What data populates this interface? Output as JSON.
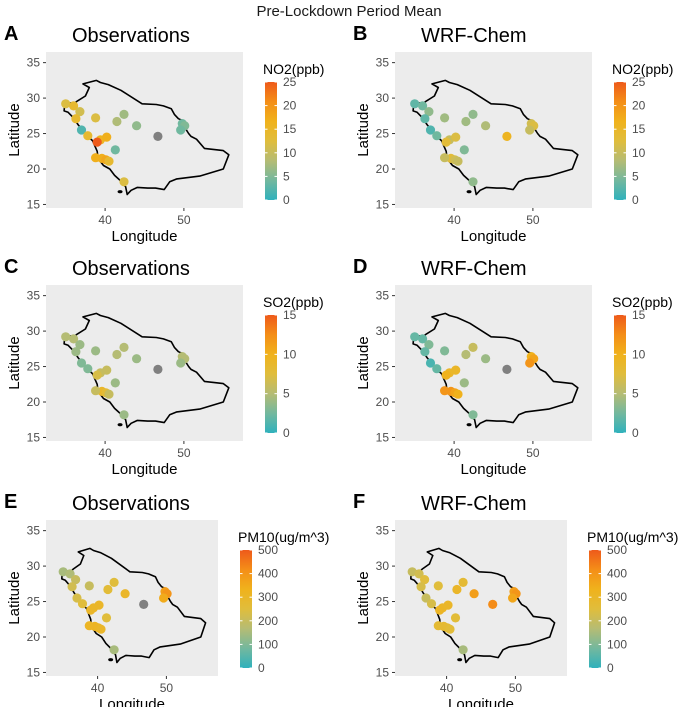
{
  "figure_title": "Pre-Lockdown Period Mean",
  "axis_labels": {
    "x": "Longitude",
    "y": "Latitude"
  },
  "x_ticks": [
    "40",
    "50"
  ],
  "y_ticks": [
    "15",
    "20",
    "25",
    "30",
    "35"
  ],
  "palette": [
    "#2fb1bc",
    "#73b89e",
    "#b5bc74",
    "#e0bd3c",
    "#f0b21c",
    "#f48e18",
    "#ee5a1a"
  ],
  "missing_color": "#808080",
  "chart_data": [
    {
      "panel": "A",
      "type": "scatter",
      "title": "Observations",
      "legend_title": "NO2(ppb)",
      "legend_ticks": [
        "0",
        "5",
        "10",
        "15",
        "20",
        "25"
      ],
      "range": [
        0,
        25
      ],
      "xlim": [
        32.5,
        57.5
      ],
      "ylim": [
        14.5,
        36.5
      ],
      "points": [
        [
          35.0,
          29.2,
          12
        ],
        [
          36.0,
          28.9,
          14
        ],
        [
          36.8,
          28.1,
          11
        ],
        [
          36.3,
          27.1,
          14
        ],
        [
          37.0,
          25.5,
          2
        ],
        [
          37.8,
          24.7,
          14
        ],
        [
          38.8,
          27.2,
          12
        ],
        [
          39.4,
          24.1,
          16
        ],
        [
          39.0,
          23.8,
          25
        ],
        [
          40.2,
          24.5,
          17
        ],
        [
          39.6,
          21.5,
          17
        ],
        [
          40.1,
          21.3,
          18
        ],
        [
          40.5,
          21.1,
          14
        ],
        [
          38.8,
          21.6,
          17
        ],
        [
          41.5,
          26.7,
          8
        ],
        [
          42.4,
          27.7,
          7
        ],
        [
          41.3,
          22.7,
          4
        ],
        [
          42.4,
          18.2,
          12
        ],
        [
          44.0,
          26.1,
          6
        ],
        [
          46.7,
          24.6,
          null
        ],
        [
          49.8,
          26.4,
          4
        ],
        [
          50.1,
          26.1,
          5
        ],
        [
          49.6,
          25.5,
          4
        ]
      ]
    },
    {
      "panel": "B",
      "type": "scatter",
      "title": "WRF-Chem",
      "legend_title": "NO2(ppb)",
      "legend_ticks": [
        "0",
        "5",
        "10",
        "15",
        "20",
        "25"
      ],
      "range": [
        0,
        25
      ],
      "xlim": [
        32.5,
        57.5
      ],
      "ylim": [
        14.5,
        36.5
      ],
      "points": [
        [
          35.0,
          29.2,
          3
        ],
        [
          36.0,
          28.9,
          4
        ],
        [
          36.8,
          28.1,
          6
        ],
        [
          36.3,
          27.1,
          3
        ],
        [
          37.0,
          25.5,
          2
        ],
        [
          37.8,
          24.7,
          4
        ],
        [
          38.8,
          27.2,
          7
        ],
        [
          39.4,
          24.1,
          10
        ],
        [
          39.0,
          23.8,
          13
        ],
        [
          40.2,
          24.5,
          12
        ],
        [
          39.6,
          21.5,
          13
        ],
        [
          40.1,
          21.3,
          11
        ],
        [
          40.5,
          21.1,
          10
        ],
        [
          38.8,
          21.6,
          10
        ],
        [
          41.5,
          26.7,
          7
        ],
        [
          42.4,
          27.7,
          6
        ],
        [
          41.3,
          22.7,
          5
        ],
        [
          42.4,
          18.2,
          6
        ],
        [
          44.0,
          26.1,
          8
        ],
        [
          46.7,
          24.6,
          16
        ],
        [
          49.8,
          26.4,
          11
        ],
        [
          50.1,
          26.1,
          12
        ],
        [
          49.6,
          25.5,
          10
        ]
      ]
    },
    {
      "panel": "C",
      "type": "scatter",
      "title": "Observations",
      "legend_title": "SO2(ppb)",
      "legend_ticks": [
        "0",
        "5",
        "10",
        "15"
      ],
      "range": [
        0,
        15
      ],
      "xlim": [
        32.5,
        57.5
      ],
      "ylim": [
        14.5,
        36.5
      ],
      "points": [
        [
          35.0,
          29.2,
          5
        ],
        [
          36.0,
          28.9,
          5
        ],
        [
          36.8,
          28.1,
          4
        ],
        [
          36.3,
          27.1,
          4
        ],
        [
          37.0,
          25.5,
          3
        ],
        [
          37.8,
          24.7,
          3
        ],
        [
          38.8,
          27.2,
          4
        ],
        [
          39.4,
          24.1,
          6
        ],
        [
          39.0,
          23.8,
          7
        ],
        [
          40.2,
          24.5,
          6
        ],
        [
          39.6,
          21.5,
          9
        ],
        [
          40.1,
          21.3,
          8
        ],
        [
          40.5,
          21.1,
          6
        ],
        [
          38.8,
          21.6,
          6
        ],
        [
          41.5,
          26.7,
          5
        ],
        [
          42.4,
          27.7,
          5
        ],
        [
          41.3,
          22.7,
          4
        ],
        [
          42.4,
          18.2,
          4
        ],
        [
          44.0,
          26.1,
          4
        ],
        [
          46.7,
          24.6,
          null
        ],
        [
          49.8,
          26.4,
          5
        ],
        [
          50.1,
          26.1,
          5
        ],
        [
          49.6,
          25.5,
          4
        ]
      ]
    },
    {
      "panel": "D",
      "type": "scatter",
      "title": "WRF-Chem",
      "legend_title": "SO2(ppb)",
      "legend_ticks": [
        "0",
        "5",
        "10",
        "15"
      ],
      "range": [
        0,
        15
      ],
      "xlim": [
        32.5,
        57.5
      ],
      "ylim": [
        14.5,
        36.5
      ],
      "points": [
        [
          35.0,
          29.2,
          2
        ],
        [
          36.0,
          28.9,
          2
        ],
        [
          36.8,
          28.1,
          3
        ],
        [
          36.3,
          27.1,
          2
        ],
        [
          37.0,
          25.5,
          1
        ],
        [
          37.8,
          24.7,
          2
        ],
        [
          38.8,
          27.2,
          3
        ],
        [
          39.4,
          24.1,
          9
        ],
        [
          39.0,
          23.8,
          10
        ],
        [
          40.2,
          24.5,
          9
        ],
        [
          39.6,
          21.5,
          12
        ],
        [
          40.1,
          21.3,
          11
        ],
        [
          40.5,
          21.1,
          10
        ],
        [
          38.8,
          21.6,
          12
        ],
        [
          41.5,
          26.7,
          5
        ],
        [
          42.4,
          27.7,
          6
        ],
        [
          41.3,
          22.7,
          4
        ],
        [
          42.4,
          18.2,
          3
        ],
        [
          44.0,
          26.1,
          4
        ],
        [
          46.7,
          24.6,
          null
        ],
        [
          49.8,
          26.4,
          10
        ],
        [
          50.1,
          26.1,
          11
        ],
        [
          49.6,
          25.5,
          12
        ]
      ]
    },
    {
      "panel": "E",
      "type": "scatter",
      "title": "Observations",
      "legend_title": "PM10(ug/m^3)",
      "legend_ticks": [
        "0",
        "100",
        "200",
        "300",
        "400",
        "500"
      ],
      "range": [
        0,
        500
      ],
      "xlim": [
        32.5,
        57.5
      ],
      "ylim": [
        14.5,
        36.5
      ],
      "points": [
        [
          35.0,
          29.2,
          150
        ],
        [
          36.0,
          28.9,
          160
        ],
        [
          36.8,
          28.1,
          200
        ],
        [
          36.3,
          27.1,
          220
        ],
        [
          37.0,
          25.5,
          230
        ],
        [
          37.8,
          24.7,
          250
        ],
        [
          38.8,
          27.2,
          200
        ],
        [
          39.4,
          24.1,
          300
        ],
        [
          39.0,
          23.8,
          300
        ],
        [
          40.2,
          24.5,
          300
        ],
        [
          39.6,
          21.5,
          320
        ],
        [
          40.1,
          21.3,
          310
        ],
        [
          40.5,
          21.1,
          300
        ],
        [
          38.8,
          21.6,
          310
        ],
        [
          41.5,
          26.7,
          260
        ],
        [
          42.4,
          27.7,
          250
        ],
        [
          41.3,
          22.7,
          250
        ],
        [
          42.4,
          18.2,
          150
        ],
        [
          44.0,
          26.1,
          300
        ],
        [
          46.7,
          24.6,
          null
        ],
        [
          49.8,
          26.4,
          380
        ],
        [
          50.1,
          26.1,
          400
        ],
        [
          49.6,
          25.5,
          350
        ]
      ]
    },
    {
      "panel": "F",
      "type": "scatter",
      "title": "WRF-Chem",
      "legend_title": "PM10(ug/m^3)",
      "legend_ticks": [
        "0",
        "100",
        "200",
        "300",
        "400",
        "500"
      ],
      "range": [
        0,
        500
      ],
      "xlim": [
        32.5,
        57.5
      ],
      "ylim": [
        14.5,
        36.5
      ],
      "points": [
        [
          35.0,
          29.2,
          200
        ],
        [
          36.0,
          28.9,
          220
        ],
        [
          36.8,
          28.1,
          250
        ],
        [
          36.3,
          27.1,
          230
        ],
        [
          37.0,
          25.5,
          200
        ],
        [
          37.8,
          24.7,
          230
        ],
        [
          38.8,
          27.2,
          250
        ],
        [
          39.4,
          24.1,
          300
        ],
        [
          39.0,
          23.8,
          310
        ],
        [
          40.2,
          24.5,
          300
        ],
        [
          39.6,
          21.5,
          280
        ],
        [
          40.1,
          21.3,
          270
        ],
        [
          40.5,
          21.1,
          260
        ],
        [
          38.8,
          21.6,
          270
        ],
        [
          41.5,
          26.7,
          300
        ],
        [
          42.4,
          27.7,
          270
        ],
        [
          41.3,
          22.7,
          260
        ],
        [
          42.4,
          18.2,
          150
        ],
        [
          44.0,
          26.1,
          380
        ],
        [
          46.7,
          24.6,
          420
        ],
        [
          49.8,
          26.4,
          380
        ],
        [
          50.1,
          26.1,
          400
        ],
        [
          49.6,
          25.5,
          360
        ]
      ]
    }
  ]
}
